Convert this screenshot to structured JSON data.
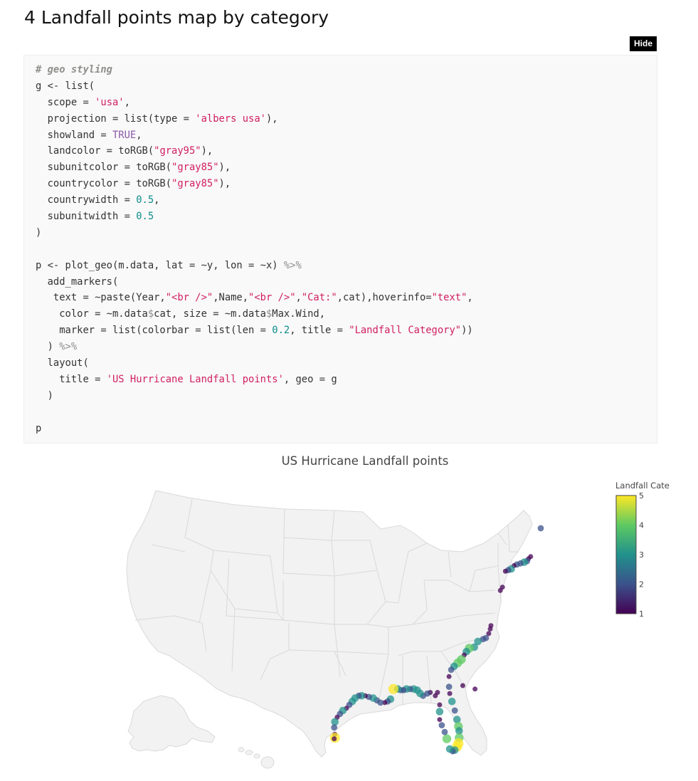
{
  "section": {
    "title": "4 Landfall points map by category"
  },
  "code_toggle": {
    "label": "Hide"
  },
  "code": {
    "lines": [
      [
        [
          "c",
          "# geo styling"
        ]
      ],
      [
        [
          "p",
          "g <- list("
        ]
      ],
      [
        [
          "p",
          "  scope = "
        ],
        [
          "s",
          "'usa'"
        ],
        [
          "p",
          ","
        ]
      ],
      [
        [
          "p",
          "  projection = list(type = "
        ],
        [
          "s",
          "'albers usa'"
        ],
        [
          "p",
          "),"
        ]
      ],
      [
        [
          "p",
          "  showland = "
        ],
        [
          "k",
          "TRUE"
        ],
        [
          "p",
          ","
        ]
      ],
      [
        [
          "p",
          "  landcolor = toRGB("
        ],
        [
          "s",
          "\"gray95\""
        ],
        [
          "p",
          "),"
        ]
      ],
      [
        [
          "p",
          "  subunitcolor = toRGB("
        ],
        [
          "s",
          "\"gray85\""
        ],
        [
          "p",
          "),"
        ]
      ],
      [
        [
          "p",
          "  countrycolor = toRGB("
        ],
        [
          "s",
          "\"gray85\""
        ],
        [
          "p",
          "),"
        ]
      ],
      [
        [
          "p",
          "  countrywidth = "
        ],
        [
          "n",
          "0.5"
        ],
        [
          "p",
          ","
        ]
      ],
      [
        [
          "p",
          "  subunitwidth = "
        ],
        [
          "n",
          "0.5"
        ]
      ],
      [
        [
          "p",
          ")"
        ]
      ],
      [
        [
          "p",
          ""
        ]
      ],
      [
        [
          "p",
          "p <- plot_geo(m.data, lat = ~y, lon = ~x) "
        ],
        [
          "o",
          "%>%"
        ]
      ],
      [
        [
          "p",
          "  add_markers("
        ]
      ],
      [
        [
          "p",
          "   text = ~paste(Year,"
        ],
        [
          "s",
          "\"<br />\""
        ],
        [
          "p",
          ",Name,"
        ],
        [
          "s",
          "\"<br />\""
        ],
        [
          "p",
          ","
        ],
        [
          "s",
          "\"Cat:\""
        ],
        [
          "p",
          ",cat),hoverinfo="
        ],
        [
          "s",
          "\"text\""
        ],
        [
          "p",
          ","
        ]
      ],
      [
        [
          "p",
          "    color = ~m.data"
        ],
        [
          "o",
          "$"
        ],
        [
          "p",
          "cat, size = ~m.data"
        ],
        [
          "o",
          "$"
        ],
        [
          "p",
          "Max.Wind,"
        ]
      ],
      [
        [
          "p",
          "    marker = list(colorbar = list(len = "
        ],
        [
          "n",
          "0.2"
        ],
        [
          "p",
          ", title = "
        ],
        [
          "s",
          "\"Landfall Category\""
        ],
        [
          "p",
          "))"
        ]
      ],
      [
        [
          "p",
          "  ) "
        ],
        [
          "o",
          "%>%"
        ]
      ],
      [
        [
          "p",
          "  layout("
        ]
      ],
      [
        [
          "p",
          "    title = "
        ],
        [
          "s",
          "'US Hurricane Landfall points'"
        ],
        [
          "p",
          ", geo = g"
        ]
      ],
      [
        [
          "p",
          "  )"
        ]
      ],
      [
        [
          "p",
          ""
        ]
      ],
      [
        [
          "p",
          "p"
        ]
      ]
    ]
  },
  "chart_data": {
    "type": "scatter",
    "subtype": "scatter_geo",
    "title": "US Hurricane Landfall points",
    "projection": "albers usa",
    "scope": "usa",
    "land_color": "#f2f2f2",
    "border_color": "#d9d9d9",
    "colorbar": {
      "title": "Landfall Cate",
      "range": [
        1,
        5
      ],
      "ticks": [
        "1",
        "2",
        "3",
        "4",
        "5"
      ],
      "colorscale": [
        "#440154",
        "#3b528b",
        "#21918c",
        "#5ec962",
        "#fde725"
      ]
    },
    "points": [
      {
        "lon": -68.7,
        "lat": 44.5,
        "cat": 2
      },
      {
        "lon": -70.1,
        "lat": 42.0,
        "cat": 1
      },
      {
        "lon": -70.4,
        "lat": 41.8,
        "cat": 1
      },
      {
        "lon": -70.6,
        "lat": 41.6,
        "cat": 2
      },
      {
        "lon": -71.0,
        "lat": 41.5,
        "cat": 3
      },
      {
        "lon": -71.5,
        "lat": 41.4,
        "cat": 2
      },
      {
        "lon": -72.0,
        "lat": 41.3,
        "cat": 2
      },
      {
        "lon": -72.4,
        "lat": 41.2,
        "cat": 1
      },
      {
        "lon": -72.8,
        "lat": 40.9,
        "cat": 3
      },
      {
        "lon": -73.2,
        "lat": 40.8,
        "cat": 2
      },
      {
        "lon": -73.6,
        "lat": 40.7,
        "cat": 1
      },
      {
        "lon": -74.0,
        "lat": 39.3,
        "cat": 1
      },
      {
        "lon": -74.3,
        "lat": 39.0,
        "cat": 1
      },
      {
        "lon": -75.6,
        "lat": 35.9,
        "cat": 1
      },
      {
        "lon": -75.7,
        "lat": 35.6,
        "cat": 1
      },
      {
        "lon": -75.9,
        "lat": 35.2,
        "cat": 1
      },
      {
        "lon": -76.3,
        "lat": 34.8,
        "cat": 2
      },
      {
        "lon": -76.7,
        "lat": 34.7,
        "cat": 2
      },
      {
        "lon": -77.4,
        "lat": 34.5,
        "cat": 3
      },
      {
        "lon": -77.9,
        "lat": 34.0,
        "cat": 3
      },
      {
        "lon": -78.6,
        "lat": 33.9,
        "cat": 4
      },
      {
        "lon": -79.0,
        "lat": 33.6,
        "cat": 3
      },
      {
        "lon": -79.3,
        "lat": 33.3,
        "cat": 1
      },
      {
        "lon": -79.7,
        "lat": 32.9,
        "cat": 4
      },
      {
        "lon": -80.2,
        "lat": 32.6,
        "cat": 4
      },
      {
        "lon": -80.7,
        "lat": 32.3,
        "cat": 3
      },
      {
        "lon": -81.1,
        "lat": 32.0,
        "cat": 2
      },
      {
        "lon": -81.4,
        "lat": 31.4,
        "cat": 1
      },
      {
        "lon": -81.4,
        "lat": 30.5,
        "cat": 2
      },
      {
        "lon": -81.3,
        "lat": 29.9,
        "cat": 1
      },
      {
        "lon": -81.0,
        "lat": 29.2,
        "cat": 3
      },
      {
        "lon": -80.6,
        "lat": 28.4,
        "cat": 2
      },
      {
        "lon": -80.3,
        "lat": 27.6,
        "cat": 3
      },
      {
        "lon": -80.1,
        "lat": 27.0,
        "cat": 4
      },
      {
        "lon": -80.0,
        "lat": 26.6,
        "cat": 3
      },
      {
        "lon": -80.0,
        "lat": 26.0,
        "cat": 4
      },
      {
        "lon": -80.1,
        "lat": 25.5,
        "cat": 5
      },
      {
        "lon": -80.3,
        "lat": 25.2,
        "cat": 5
      },
      {
        "lon": -80.6,
        "lat": 24.9,
        "cat": 3
      },
      {
        "lon": -80.9,
        "lat": 24.8,
        "cat": 2
      },
      {
        "lon": -81.3,
        "lat": 25.0,
        "cat": 3
      },
      {
        "lon": -81.7,
        "lat": 25.9,
        "cat": 4
      },
      {
        "lon": -82.0,
        "lat": 26.5,
        "cat": 2
      },
      {
        "lon": -82.4,
        "lat": 27.1,
        "cat": 2
      },
      {
        "lon": -82.7,
        "lat": 27.6,
        "cat": 1
      },
      {
        "lon": -82.7,
        "lat": 28.3,
        "cat": 3
      },
      {
        "lon": -82.7,
        "lat": 28.9,
        "cat": 1
      },
      {
        "lon": -83.3,
        "lat": 29.7,
        "cat": 1
      },
      {
        "lon": -84.0,
        "lat": 30.0,
        "cat": 1
      },
      {
        "lon": -84.4,
        "lat": 29.9,
        "cat": 2
      },
      {
        "lon": -85.0,
        "lat": 29.7,
        "cat": 2
      },
      {
        "lon": -85.4,
        "lat": 29.9,
        "cat": 3
      },
      {
        "lon": -85.8,
        "lat": 30.2,
        "cat": 3
      },
      {
        "lon": -86.3,
        "lat": 30.3,
        "cat": 3
      },
      {
        "lon": -86.8,
        "lat": 30.3,
        "cat": 2
      },
      {
        "lon": -87.3,
        "lat": 30.3,
        "cat": 3
      },
      {
        "lon": -87.7,
        "lat": 30.2,
        "cat": 2
      },
      {
        "lon": -88.1,
        "lat": 30.2,
        "cat": 2
      },
      {
        "lon": -88.5,
        "lat": 30.3,
        "cat": 3
      },
      {
        "lon": -89.1,
        "lat": 30.3,
        "cat": 5
      },
      {
        "lon": -89.5,
        "lat": 29.4,
        "cat": 3
      },
      {
        "lon": -89.9,
        "lat": 29.2,
        "cat": 2
      },
      {
        "lon": -90.3,
        "lat": 29.1,
        "cat": 1
      },
      {
        "lon": -90.9,
        "lat": 29.1,
        "cat": 2
      },
      {
        "lon": -91.4,
        "lat": 29.3,
        "cat": 2
      },
      {
        "lon": -91.9,
        "lat": 29.5,
        "cat": 3
      },
      {
        "lon": -92.5,
        "lat": 29.6,
        "cat": 2
      },
      {
        "lon": -93.0,
        "lat": 29.7,
        "cat": 1
      },
      {
        "lon": -93.5,
        "lat": 29.7,
        "cat": 3
      },
      {
        "lon": -93.9,
        "lat": 29.7,
        "cat": 2
      },
      {
        "lon": -94.4,
        "lat": 29.5,
        "cat": 3
      },
      {
        "lon": -94.8,
        "lat": 29.2,
        "cat": 3
      },
      {
        "lon": -95.2,
        "lat": 28.9,
        "cat": 2
      },
      {
        "lon": -95.6,
        "lat": 28.6,
        "cat": 1
      },
      {
        "lon": -96.1,
        "lat": 28.4,
        "cat": 3
      },
      {
        "lon": -96.5,
        "lat": 28.1,
        "cat": 2
      },
      {
        "lon": -96.9,
        "lat": 27.8,
        "cat": 1
      },
      {
        "lon": -97.2,
        "lat": 27.4,
        "cat": 3
      },
      {
        "lon": -97.3,
        "lat": 26.9,
        "cat": 2
      },
      {
        "lon": -97.2,
        "lat": 26.3,
        "cat": 1
      },
      {
        "lon": -97.2,
        "lat": 26.0,
        "cat": 5
      },
      {
        "lon": -97.3,
        "lat": 25.9,
        "cat": 1
      },
      {
        "lon": -79.5,
        "lat": 30.6,
        "cat": 1
      },
      {
        "lon": -77.8,
        "lat": 30.3,
        "cat": 1
      },
      {
        "lon": -83.0,
        "lat": 30.0,
        "cat": 1
      }
    ]
  }
}
